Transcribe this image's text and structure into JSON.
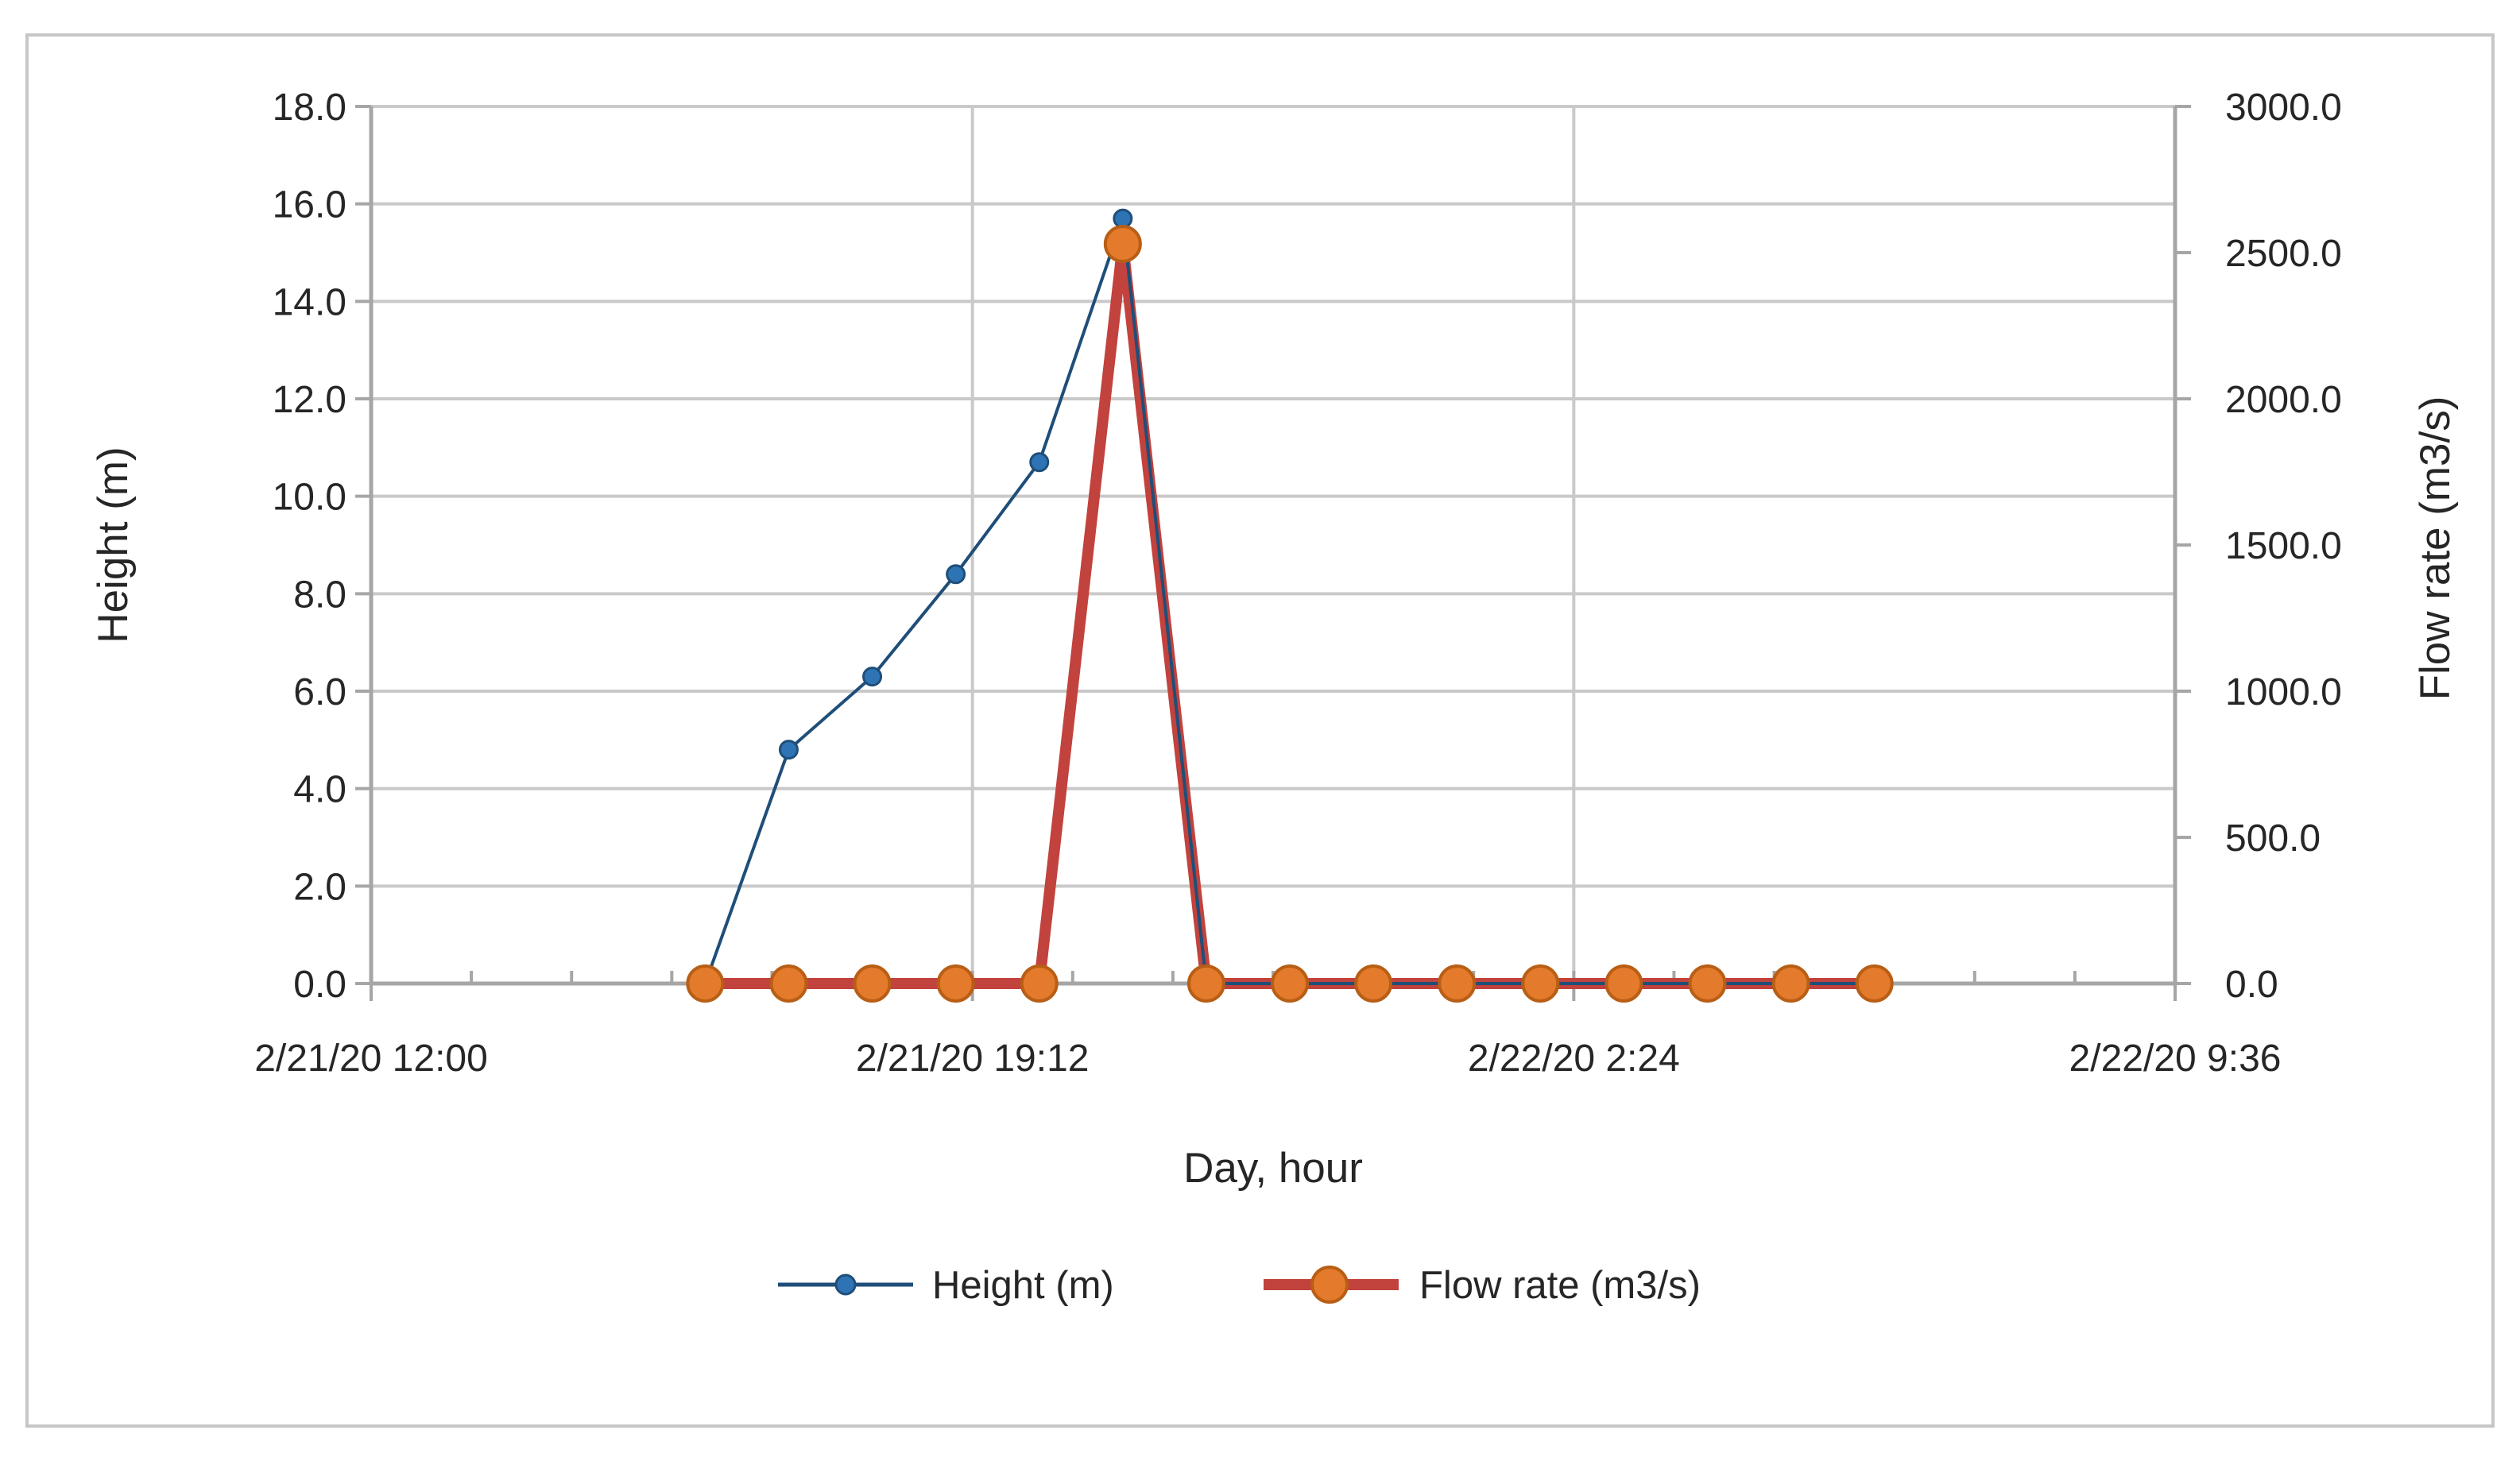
{
  "chart": {
    "x_axis": {
      "title": "Day, hour",
      "tick_labels": [
        "2/21/20 12:00",
        "2/21/20 19:12",
        "2/22/20 2:24",
        "2/22/20 9:36"
      ],
      "tick_positions_hours": [
        0,
        7.2,
        14.4,
        21.6
      ],
      "minor_tick_interval_hours": 1.2
    },
    "y_left": {
      "title": "Height (m)",
      "min": 0,
      "max": 18,
      "step": 2,
      "tick_labels": [
        "0.0",
        "2.0",
        "4.0",
        "6.0",
        "8.0",
        "10.0",
        "12.0",
        "14.0",
        "16.0",
        "18.0"
      ]
    },
    "y_right": {
      "title": "Flow rate (m3/s)",
      "min": 0,
      "max": 3000,
      "step": 500,
      "tick_labels": [
        "0.0",
        "500.0",
        "1000.0",
        "1500.0",
        "2000.0",
        "2500.0",
        "3000.0"
      ]
    },
    "legend": {
      "position": "bottom",
      "items": [
        {
          "label": "Height (m)"
        },
        {
          "label": "Flow rate (m3/s)"
        }
      ]
    }
  },
  "chart_data": {
    "type": "line",
    "title": "",
    "xlabel": "Day, hour",
    "xlim": [
      "2/21/20 12:00",
      "2/22/20 9:36"
    ],
    "x_axis_span_hours": 21.6,
    "x_times": [
      "2/21/20 16:00",
      "2/21/20 17:00",
      "2/21/20 18:00",
      "2/21/20 19:00",
      "2/21/20 20:00",
      "2/21/20 21:00",
      "2/21/20 22:00",
      "2/21/20 23:00",
      "2/22/20 0:00",
      "2/22/20 1:00",
      "2/22/20 2:00",
      "2/22/20 3:00",
      "2/22/20 4:00",
      "2/22/20 5:00",
      "2/22/20 6:00"
    ],
    "x_hours_after_axis_start": [
      4,
      5,
      6,
      7,
      8,
      9,
      10,
      11,
      12,
      13,
      14,
      15,
      16,
      17,
      18
    ],
    "series": [
      {
        "name": "Height (m)",
        "axis": "left",
        "line_color": "#1F4E79",
        "marker_color": "#2E74B5",
        "marker_edge": "#1F4E79",
        "values": [
          0.0,
          4.8,
          6.3,
          8.4,
          10.7,
          15.7,
          0.0,
          0.0,
          0.0,
          0.0,
          0.0,
          0.0,
          0.0,
          0.0,
          0.0
        ]
      },
      {
        "name": "Flow rate (m3/s)",
        "axis": "right",
        "line_color": "#C2423D",
        "marker_color": "#E47A2B",
        "marker_edge": "#B85E15",
        "values": [
          0,
          0,
          0,
          0,
          0,
          2530,
          0,
          0,
          0,
          0,
          0,
          0,
          0,
          0,
          0
        ]
      }
    ],
    "ylabel_left": "Height (m)",
    "ylabel_right": "Flow rate (m3/s)",
    "ylim_left": [
      0,
      18
    ],
    "ylim_right": [
      0,
      3000
    ],
    "grid": true,
    "legend_position": "bottom"
  },
  "colors": {
    "grid": "#C9C9C9",
    "axis": "#A6A6A6",
    "chart_border": "#C6C6C6",
    "text": "#262626",
    "background": "#FFFFFF"
  }
}
